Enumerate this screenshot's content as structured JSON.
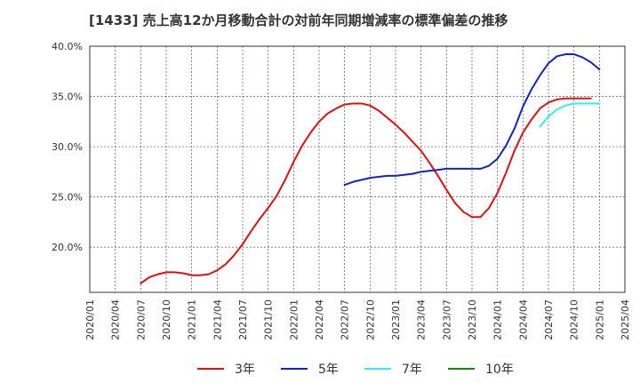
{
  "chart_data": {
    "type": "line",
    "title": "[1433]  売上高12か月移動合計の対前年同期増減率の標準偏差の推移",
    "xlabel": "",
    "ylabel": "",
    "ylim": [
      15.5,
      40.0
    ],
    "yticks": [
      20.0,
      25.0,
      30.0,
      35.0,
      40.0
    ],
    "ytick_labels": [
      "20.0%",
      "25.0%",
      "30.0%",
      "35.0%",
      "40.0%"
    ],
    "xtick_labels": [
      "2020/01",
      "2020/04",
      "2020/07",
      "2020/10",
      "2021/01",
      "2021/04",
      "2021/07",
      "2021/10",
      "2022/01",
      "2022/04",
      "2022/07",
      "2022/10",
      "2023/01",
      "2023/04",
      "2023/07",
      "2023/10",
      "2024/01",
      "2024/04",
      "2024/07",
      "2024/10",
      "2025/01",
      "2025/04"
    ],
    "grid": true,
    "legend_position": "bottom",
    "series": [
      {
        "name": "3年",
        "color": "#dd1111",
        "points": [
          [
            "2020/07",
            16.4
          ],
          [
            "2020/08",
            17.0
          ],
          [
            "2020/09",
            17.3
          ],
          [
            "2020/10",
            17.5
          ],
          [
            "2020/11",
            17.5
          ],
          [
            "2020/12",
            17.4
          ],
          [
            "2021/01",
            17.2
          ],
          [
            "2021/02",
            17.2
          ],
          [
            "2021/03",
            17.3
          ],
          [
            "2021/04",
            17.7
          ],
          [
            "2021/05",
            18.3
          ],
          [
            "2021/06",
            19.2
          ],
          [
            "2021/07",
            20.3
          ],
          [
            "2021/08",
            21.6
          ],
          [
            "2021/09",
            22.8
          ],
          [
            "2021/10",
            23.9
          ],
          [
            "2021/11",
            25.1
          ],
          [
            "2021/12",
            26.7
          ],
          [
            "2022/01",
            28.5
          ],
          [
            "2022/02",
            30.1
          ],
          [
            "2022/03",
            31.4
          ],
          [
            "2022/04",
            32.5
          ],
          [
            "2022/05",
            33.3
          ],
          [
            "2022/06",
            33.8
          ],
          [
            "2022/07",
            34.2
          ],
          [
            "2022/08",
            34.3
          ],
          [
            "2022/09",
            34.3
          ],
          [
            "2022/10",
            34.1
          ],
          [
            "2022/11",
            33.6
          ],
          [
            "2022/12",
            32.9
          ],
          [
            "2023/01",
            32.2
          ],
          [
            "2023/02",
            31.4
          ],
          [
            "2023/03",
            30.5
          ],
          [
            "2023/04",
            29.6
          ],
          [
            "2023/05",
            28.4
          ],
          [
            "2023/06",
            27.1
          ],
          [
            "2023/07",
            25.7
          ],
          [
            "2023/08",
            24.4
          ],
          [
            "2023/09",
            23.5
          ],
          [
            "2023/10",
            23.0
          ],
          [
            "2023/11",
            23.0
          ],
          [
            "2023/12",
            23.9
          ],
          [
            "2024/01",
            25.4
          ],
          [
            "2024/02",
            27.4
          ],
          [
            "2024/03",
            29.6
          ],
          [
            "2024/04",
            31.4
          ],
          [
            "2024/05",
            32.7
          ],
          [
            "2024/06",
            33.8
          ],
          [
            "2024/07",
            34.4
          ],
          [
            "2024/08",
            34.7
          ],
          [
            "2024/09",
            34.8
          ],
          [
            "2024/10",
            34.8
          ],
          [
            "2024/11",
            34.8
          ],
          [
            "2024/12",
            34.8
          ]
        ]
      },
      {
        "name": "5年",
        "color": "#1122cc",
        "points": [
          [
            "2022/07",
            26.2
          ],
          [
            "2022/08",
            26.5
          ],
          [
            "2022/09",
            26.7
          ],
          [
            "2022/10",
            26.9
          ],
          [
            "2022/11",
            27.0
          ],
          [
            "2022/12",
            27.1
          ],
          [
            "2023/01",
            27.1
          ],
          [
            "2023/02",
            27.2
          ],
          [
            "2023/03",
            27.3
          ],
          [
            "2023/04",
            27.5
          ],
          [
            "2023/05",
            27.6
          ],
          [
            "2023/06",
            27.7
          ],
          [
            "2023/07",
            27.8
          ],
          [
            "2023/08",
            27.8
          ],
          [
            "2023/09",
            27.8
          ],
          [
            "2023/10",
            27.8
          ],
          [
            "2023/11",
            27.8
          ],
          [
            "2023/12",
            28.1
          ],
          [
            "2024/01",
            28.8
          ],
          [
            "2024/02",
            30.1
          ],
          [
            "2024/03",
            31.8
          ],
          [
            "2024/04",
            34.0
          ],
          [
            "2024/05",
            35.7
          ],
          [
            "2024/06",
            37.1
          ],
          [
            "2024/07",
            38.3
          ],
          [
            "2024/08",
            39.0
          ],
          [
            "2024/09",
            39.2
          ],
          [
            "2024/10",
            39.2
          ],
          [
            "2024/11",
            38.9
          ],
          [
            "2024/12",
            38.4
          ],
          [
            "2025/01",
            37.7
          ]
        ]
      },
      {
        "name": "7年",
        "color": "#33eeee",
        "points": [
          [
            "2024/06",
            32.0
          ],
          [
            "2024/07",
            33.0
          ],
          [
            "2024/08",
            33.7
          ],
          [
            "2024/09",
            34.1
          ],
          [
            "2024/10",
            34.3
          ],
          [
            "2024/11",
            34.3
          ],
          [
            "2024/12",
            34.3
          ],
          [
            "2025/01",
            34.3
          ]
        ]
      },
      {
        "name": "10年",
        "color": "#118811",
        "points": []
      }
    ]
  }
}
